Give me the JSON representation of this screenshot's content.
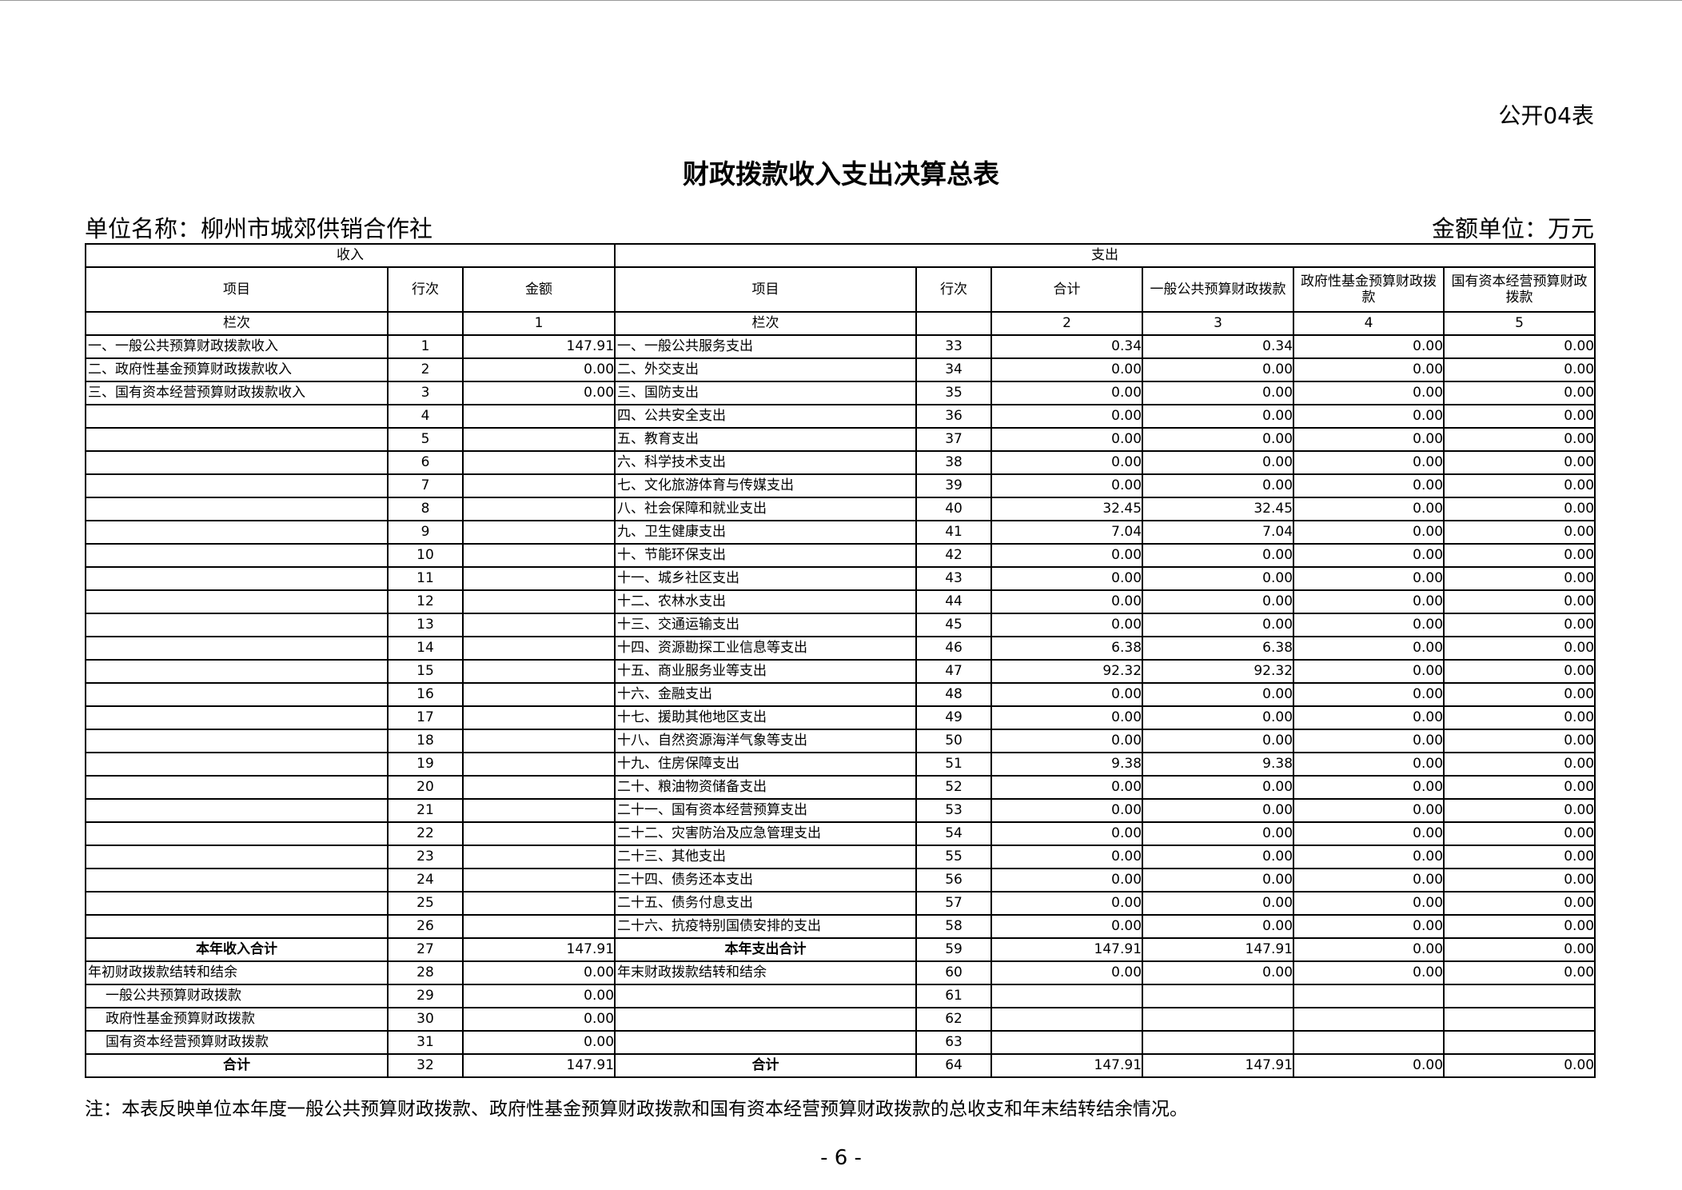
{
  "form_no": "公开04表",
  "title": "财政拨款收入支出决算总表",
  "unit_name": "单位名称：柳州市城郊供销合作社",
  "unit_money": "金额单位：万元",
  "headers": {
    "income": "收入",
    "expense": "支出",
    "item": "项目",
    "line": "行次",
    "amount": "金额",
    "total": "合计",
    "general": "一般公共预算财政拨款",
    "gov_fund": "政府性基金预算财政拨款",
    "state_capital": "国有资本经营预算财政拨款",
    "col_label": "栏次",
    "col1": "1",
    "col2": "2",
    "col3": "3",
    "col4": "4",
    "col5": "5"
  },
  "rows": [
    {
      "in_item": "一、一般公共预算财政拨款收入",
      "in_line": "1",
      "in_amt": "147.91",
      "ex_item": "一、一般公共服务支出",
      "ex_line": "33",
      "total": "0.34",
      "general": "0.34",
      "fund": "0.00",
      "capital": "0.00"
    },
    {
      "in_item": "二、政府性基金预算财政拨款收入",
      "in_line": "2",
      "in_amt": "0.00",
      "ex_item": "二、外交支出",
      "ex_line": "34",
      "total": "0.00",
      "general": "0.00",
      "fund": "0.00",
      "capital": "0.00"
    },
    {
      "in_item": "三、国有资本经营预算财政拨款收入",
      "in_line": "3",
      "in_amt": "0.00",
      "ex_item": "三、国防支出",
      "ex_line": "35",
      "total": "0.00",
      "general": "0.00",
      "fund": "0.00",
      "capital": "0.00"
    },
    {
      "in_item": "",
      "in_line": "4",
      "in_amt": "",
      "ex_item": "四、公共安全支出",
      "ex_line": "36",
      "total": "0.00",
      "general": "0.00",
      "fund": "0.00",
      "capital": "0.00"
    },
    {
      "in_item": "",
      "in_line": "5",
      "in_amt": "",
      "ex_item": "五、教育支出",
      "ex_line": "37",
      "total": "0.00",
      "general": "0.00",
      "fund": "0.00",
      "capital": "0.00"
    },
    {
      "in_item": "",
      "in_line": "6",
      "in_amt": "",
      "ex_item": "六、科学技术支出",
      "ex_line": "38",
      "total": "0.00",
      "general": "0.00",
      "fund": "0.00",
      "capital": "0.00"
    },
    {
      "in_item": "",
      "in_line": "7",
      "in_amt": "",
      "ex_item": "七、文化旅游体育与传媒支出",
      "ex_line": "39",
      "total": "0.00",
      "general": "0.00",
      "fund": "0.00",
      "capital": "0.00"
    },
    {
      "in_item": "",
      "in_line": "8",
      "in_amt": "",
      "ex_item": "八、社会保障和就业支出",
      "ex_line": "40",
      "total": "32.45",
      "general": "32.45",
      "fund": "0.00",
      "capital": "0.00"
    },
    {
      "in_item": "",
      "in_line": "9",
      "in_amt": "",
      "ex_item": "九、卫生健康支出",
      "ex_line": "41",
      "total": "7.04",
      "general": "7.04",
      "fund": "0.00",
      "capital": "0.00"
    },
    {
      "in_item": "",
      "in_line": "10",
      "in_amt": "",
      "ex_item": "十、节能环保支出",
      "ex_line": "42",
      "total": "0.00",
      "general": "0.00",
      "fund": "0.00",
      "capital": "0.00"
    },
    {
      "in_item": "",
      "in_line": "11",
      "in_amt": "",
      "ex_item": "十一、城乡社区支出",
      "ex_line": "43",
      "total": "0.00",
      "general": "0.00",
      "fund": "0.00",
      "capital": "0.00"
    },
    {
      "in_item": "",
      "in_line": "12",
      "in_amt": "",
      "ex_item": "十二、农林水支出",
      "ex_line": "44",
      "total": "0.00",
      "general": "0.00",
      "fund": "0.00",
      "capital": "0.00"
    },
    {
      "in_item": "",
      "in_line": "13",
      "in_amt": "",
      "ex_item": "十三、交通运输支出",
      "ex_line": "45",
      "total": "0.00",
      "general": "0.00",
      "fund": "0.00",
      "capital": "0.00"
    },
    {
      "in_item": "",
      "in_line": "14",
      "in_amt": "",
      "ex_item": "十四、资源勘探工业信息等支出",
      "ex_line": "46",
      "total": "6.38",
      "general": "6.38",
      "fund": "0.00",
      "capital": "0.00"
    },
    {
      "in_item": "",
      "in_line": "15",
      "in_amt": "",
      "ex_item": "十五、商业服务业等支出",
      "ex_line": "47",
      "total": "92.32",
      "general": "92.32",
      "fund": "0.00",
      "capital": "0.00"
    },
    {
      "in_item": "",
      "in_line": "16",
      "in_amt": "",
      "ex_item": "十六、金融支出",
      "ex_line": "48",
      "total": "0.00",
      "general": "0.00",
      "fund": "0.00",
      "capital": "0.00"
    },
    {
      "in_item": "",
      "in_line": "17",
      "in_amt": "",
      "ex_item": "十七、援助其他地区支出",
      "ex_line": "49",
      "total": "0.00",
      "general": "0.00",
      "fund": "0.00",
      "capital": "0.00"
    },
    {
      "in_item": "",
      "in_line": "18",
      "in_amt": "",
      "ex_item": "十八、自然资源海洋气象等支出",
      "ex_line": "50",
      "total": "0.00",
      "general": "0.00",
      "fund": "0.00",
      "capital": "0.00"
    },
    {
      "in_item": "",
      "in_line": "19",
      "in_amt": "",
      "ex_item": "十九、住房保障支出",
      "ex_line": "51",
      "total": "9.38",
      "general": "9.38",
      "fund": "0.00",
      "capital": "0.00"
    },
    {
      "in_item": "",
      "in_line": "20",
      "in_amt": "",
      "ex_item": "二十、粮油物资储备支出",
      "ex_line": "52",
      "total": "0.00",
      "general": "0.00",
      "fund": "0.00",
      "capital": "0.00"
    },
    {
      "in_item": "",
      "in_line": "21",
      "in_amt": "",
      "ex_item": "二十一、国有资本经营预算支出",
      "ex_line": "53",
      "total": "0.00",
      "general": "0.00",
      "fund": "0.00",
      "capital": "0.00"
    },
    {
      "in_item": "",
      "in_line": "22",
      "in_amt": "",
      "ex_item": "二十二、灾害防治及应急管理支出",
      "ex_line": "54",
      "total": "0.00",
      "general": "0.00",
      "fund": "0.00",
      "capital": "0.00"
    },
    {
      "in_item": "",
      "in_line": "23",
      "in_amt": "",
      "ex_item": "二十三、其他支出",
      "ex_line": "55",
      "total": "0.00",
      "general": "0.00",
      "fund": "0.00",
      "capital": "0.00"
    },
    {
      "in_item": "",
      "in_line": "24",
      "in_amt": "",
      "ex_item": "二十四、债务还本支出",
      "ex_line": "56",
      "total": "0.00",
      "general": "0.00",
      "fund": "0.00",
      "capital": "0.00"
    },
    {
      "in_item": "",
      "in_line": "25",
      "in_amt": "",
      "ex_item": "二十五、债务付息支出",
      "ex_line": "57",
      "total": "0.00",
      "general": "0.00",
      "fund": "0.00",
      "capital": "0.00"
    },
    {
      "in_item": "",
      "in_line": "26",
      "in_amt": "",
      "ex_item": "二十六、抗疫特别国债安排的支出",
      "ex_line": "58",
      "total": "0.00",
      "general": "0.00",
      "fund": "0.00",
      "capital": "0.00"
    },
    {
      "in_item": "本年收入合计",
      "in_line": "27",
      "in_amt": "147.91",
      "ex_item": "本年支出合计",
      "ex_line": "59",
      "total": "147.91",
      "general": "147.91",
      "fund": "0.00",
      "capital": "0.00",
      "bold": true
    },
    {
      "in_item": "年初财政拨款结转和结余",
      "in_line": "28",
      "in_amt": "0.00",
      "ex_item": "年末财政拨款结转和结余",
      "ex_line": "60",
      "total": "0.00",
      "general": "0.00",
      "fund": "0.00",
      "capital": "0.00"
    },
    {
      "in_item": "一般公共预算财政拨款",
      "in_line": "29",
      "in_amt": "0.00",
      "ex_item": "",
      "ex_line": "61",
      "total": "",
      "general": "",
      "fund": "",
      "capital": "",
      "indent": true
    },
    {
      "in_item": "政府性基金预算财政拨款",
      "in_line": "30",
      "in_amt": "0.00",
      "ex_item": "",
      "ex_line": "62",
      "total": "",
      "general": "",
      "fund": "",
      "capital": "",
      "indent": true
    },
    {
      "in_item": "国有资本经营预算财政拨款",
      "in_line": "31",
      "in_amt": "0.00",
      "ex_item": "",
      "ex_line": "63",
      "total": "",
      "general": "",
      "fund": "",
      "capital": "",
      "indent": true
    },
    {
      "in_item": "合计",
      "in_line": "32",
      "in_amt": "147.91",
      "ex_item": "合计",
      "ex_line": "64",
      "total": "147.91",
      "general": "147.91",
      "fund": "0.00",
      "capital": "0.00",
      "bold": true
    }
  ],
  "note": "注：本表反映单位本年度一般公共预算财政拨款、政府性基金预算财政拨款和国有资本经营预算财政拨款的总收支和年末结转结余情况。",
  "page_number": "- 6 -"
}
